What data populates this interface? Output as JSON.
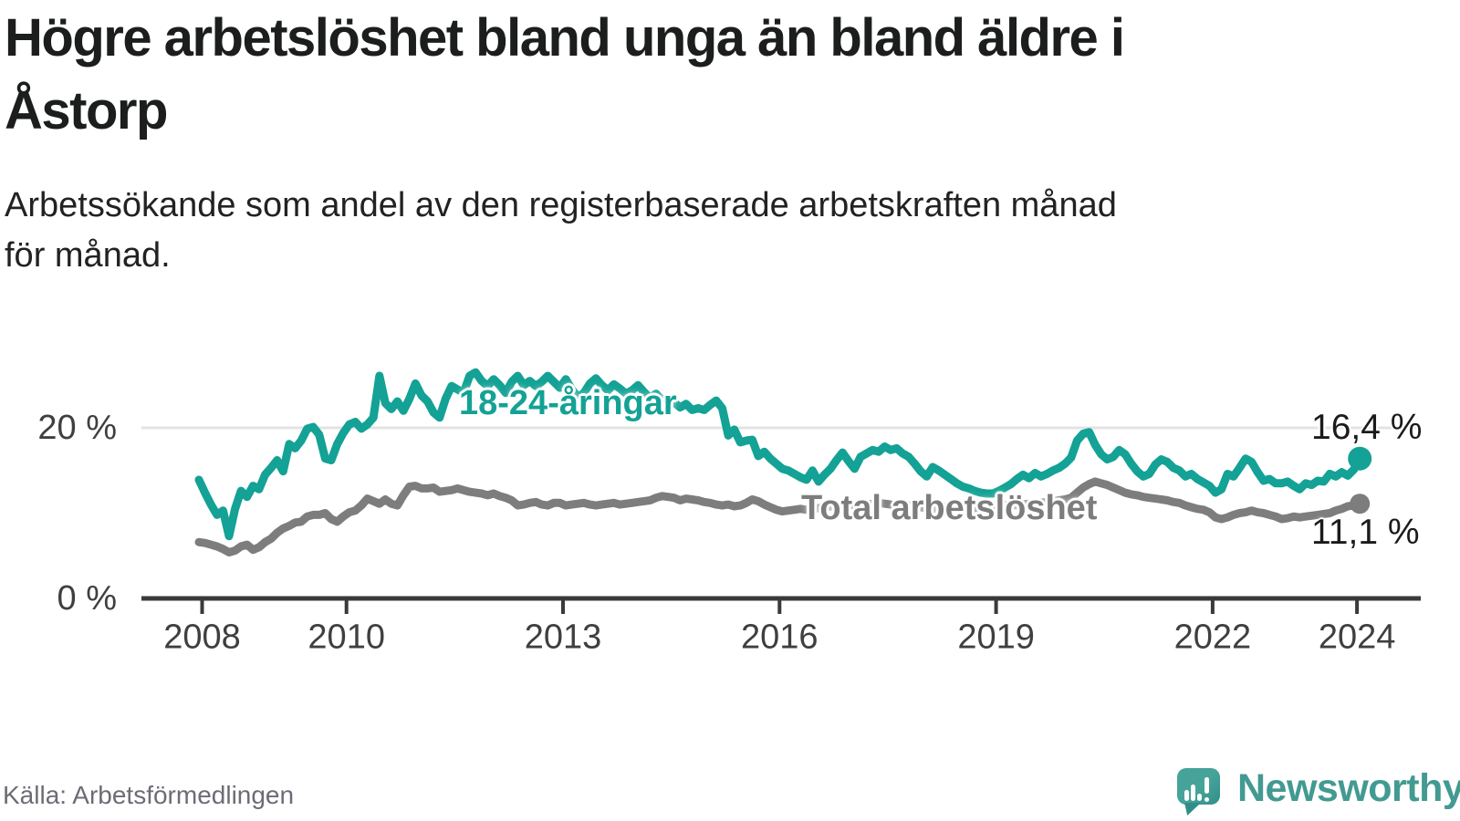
{
  "header": {
    "title": "Högre arbetslöshet bland unga än bland äldre i Åstorp",
    "title_lines": [
      "Högre arbetslöshet bland unga än bland äldre i",
      "Åstorp"
    ],
    "subtitle": "Arbetssökande som andel av den registerbaserade arbetskraften månad för månad.",
    "subtitle_lines": [
      "Arbetssökande som andel av den registerbaserade arbetskraften månad",
      "för månad."
    ]
  },
  "footer": {
    "source": "Källa: Arbetsförmedlingen",
    "brand": "Newsworthy",
    "brand_icon": "newsworthy-speech-bubble-bar-chart-icon"
  },
  "colors": {
    "youth_line": "#13a295",
    "total_line": "#7d7d7d",
    "grid": "#e3e3e3",
    "axis": "#3a3a3a",
    "tick_text": "#3f3f3f",
    "value_text": "#1b1b1b",
    "brand_teal": "#429a92"
  },
  "chart_data": {
    "type": "line",
    "frequency": "monthly",
    "x_start": "2008-01",
    "x_end": "2024-02",
    "grid": "horizontal-20-only",
    "legend_position": "inline-labels-on-lines",
    "ylim": [
      0,
      28
    ],
    "y_ticks": [
      {
        "value": 0,
        "label": "0 %"
      },
      {
        "value": 20,
        "label": "20 %"
      }
    ],
    "x_ticks": [
      {
        "year": 2008,
        "label": "2008"
      },
      {
        "year": 2010,
        "label": "2010"
      },
      {
        "year": 2013,
        "label": "2013"
      },
      {
        "year": 2016,
        "label": "2016"
      },
      {
        "year": 2019,
        "label": "2019"
      },
      {
        "year": 2022,
        "label": "2022"
      },
      {
        "year": 2024,
        "label": "2024"
      }
    ],
    "series": [
      {
        "name": "18-24-åringar",
        "color": "#13a295",
        "last_value": 16.4,
        "last_value_label": "16,4 %",
        "end_dot_radius": 13,
        "values": [
          13.9,
          12.4,
          11.0,
          9.8,
          10.3,
          7.3,
          10.5,
          12.6,
          11.9,
          13.2,
          12.8,
          14.5,
          15.3,
          16.2,
          14.9,
          18.1,
          17.6,
          18.5,
          19.9,
          20.1,
          19.2,
          16.4,
          16.2,
          18.1,
          19.4,
          20.4,
          20.7,
          19.9,
          20.4,
          21.2,
          26.1,
          22.9,
          22.2,
          23.1,
          22.0,
          23.4,
          25.2,
          23.8,
          23.1,
          21.8,
          21.2,
          23.4,
          24.9,
          24.5,
          24.1,
          26.1,
          26.5,
          25.5,
          24.9,
          25.7,
          25.0,
          24.1,
          25.4,
          26.1,
          25.0,
          25.5,
          24.9,
          25.4,
          26.1,
          25.4,
          24.7,
          25.7,
          24.5,
          23.6,
          24.1,
          25.2,
          25.8,
          25.0,
          24.4,
          25.1,
          24.6,
          24.0,
          24.4,
          25.0,
          24.2,
          23.5,
          24.0,
          23.2,
          22.6,
          23.0,
          22.4,
          22.8,
          22.1,
          22.3,
          22.1,
          22.7,
          23.2,
          22.3,
          19.1,
          19.8,
          18.3,
          18.5,
          18.6,
          16.7,
          17.2,
          16.4,
          15.8,
          15.2,
          15.0,
          14.6,
          14.2,
          13.9,
          15.0,
          13.7,
          14.5,
          15.2,
          16.2,
          17.1,
          16.1,
          15.2,
          16.6,
          17.0,
          17.4,
          17.2,
          17.8,
          17.4,
          17.6,
          17.0,
          16.6,
          15.8,
          14.9,
          14.3,
          15.4,
          15.0,
          14.5,
          14.0,
          13.5,
          13.1,
          12.9,
          12.6,
          12.4,
          12.3,
          12.3,
          12.6,
          13.0,
          13.4,
          14.0,
          14.5,
          14.1,
          14.7,
          14.3,
          14.6,
          15.0,
          15.3,
          15.8,
          16.5,
          18.5,
          19.3,
          19.5,
          18.0,
          16.9,
          16.3,
          16.6,
          17.4,
          16.9,
          15.8,
          14.9,
          14.3,
          14.6,
          15.7,
          16.3,
          16.0,
          15.3,
          15.0,
          14.3,
          14.6,
          14.0,
          13.6,
          13.2,
          12.4,
          12.8,
          14.6,
          14.3,
          15.3,
          16.4,
          16.0,
          14.8,
          13.8,
          14.0,
          13.5,
          13.5,
          13.7,
          13.2,
          12.8,
          13.5,
          13.3,
          13.8,
          13.7,
          14.6,
          14.3,
          14.8,
          14.4,
          15.1,
          16.4
        ]
      },
      {
        "name": "Total arbetslöshet",
        "color": "#7d7d7d",
        "last_value": 11.1,
        "last_value_label": "11,1 %",
        "end_dot_radius": 11,
        "values": [
          6.6,
          6.5,
          6.3,
          6.1,
          5.8,
          5.4,
          5.6,
          6.1,
          6.3,
          5.7,
          6.0,
          6.6,
          7.0,
          7.7,
          8.2,
          8.5,
          8.9,
          9.0,
          9.6,
          9.8,
          9.8,
          10.0,
          9.3,
          9.0,
          9.6,
          10.1,
          10.3,
          10.9,
          11.7,
          11.4,
          11.1,
          11.6,
          11.1,
          10.9,
          12.1,
          13.1,
          13.2,
          12.9,
          12.9,
          13.0,
          12.5,
          12.6,
          12.7,
          12.9,
          12.7,
          12.5,
          12.4,
          12.3,
          12.1,
          12.3,
          12.0,
          11.8,
          11.5,
          10.9,
          11.0,
          11.2,
          11.3,
          11.0,
          10.9,
          11.2,
          11.2,
          10.9,
          11.0,
          11.1,
          11.2,
          11.0,
          10.9,
          11.0,
          11.1,
          11.2,
          11.0,
          11.1,
          11.2,
          11.3,
          11.4,
          11.5,
          11.8,
          12.0,
          11.9,
          11.8,
          11.5,
          11.7,
          11.6,
          11.5,
          11.3,
          11.2,
          11.0,
          10.9,
          11.0,
          10.8,
          10.9,
          11.2,
          11.6,
          11.4,
          11.0,
          10.7,
          10.4,
          10.2,
          10.3,
          10.4,
          10.5,
          10.4,
          10.5,
          10.6,
          10.7,
          10.8,
          10.9,
          10.8,
          10.9,
          11.0,
          11.1,
          11.0,
          11.1,
          11.2,
          11.1,
          11.0,
          10.9,
          10.8,
          10.9,
          10.8,
          10.7,
          10.6,
          10.5,
          10.6,
          10.7,
          10.6,
          10.5,
          10.4,
          10.5,
          10.6,
          10.7,
          10.8,
          10.9,
          10.8,
          10.9,
          11.0,
          10.9,
          11.0,
          11.1,
          11.0,
          11.2,
          11.3,
          11.4,
          11.5,
          11.6,
          11.8,
          12.4,
          13.0,
          13.4,
          13.7,
          13.5,
          13.3,
          13.0,
          12.7,
          12.4,
          12.2,
          12.1,
          11.9,
          11.8,
          11.7,
          11.6,
          11.5,
          11.3,
          11.2,
          10.9,
          10.7,
          10.5,
          10.4,
          10.1,
          9.5,
          9.3,
          9.5,
          9.8,
          10.0,
          10.1,
          10.3,
          10.1,
          10.0,
          9.8,
          9.6,
          9.3,
          9.4,
          9.6,
          9.5,
          9.6,
          9.7,
          9.8,
          9.9,
          10.0,
          10.3,
          10.5,
          10.8,
          10.9,
          11.1
        ]
      }
    ]
  }
}
